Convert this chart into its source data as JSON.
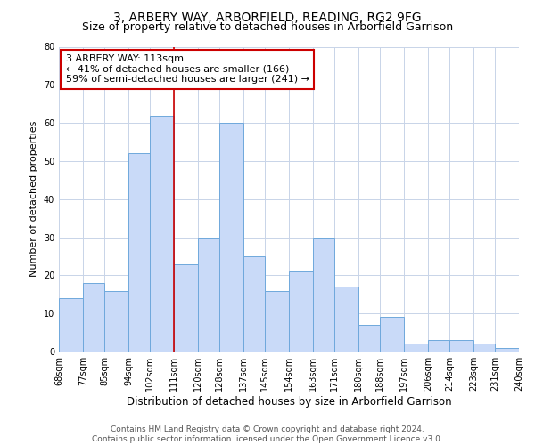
{
  "title": "3, ARBERY WAY, ARBORFIELD, READING, RG2 9FG",
  "subtitle": "Size of property relative to detached houses in Arborfield Garrison",
  "xlabel": "Distribution of detached houses by size in Arborfield Garrison",
  "ylabel": "Number of detached properties",
  "footer_line1": "Contains HM Land Registry data © Crown copyright and database right 2024.",
  "footer_line2": "Contains public sector information licensed under the Open Government Licence v3.0.",
  "annotation_line1": "3 ARBERY WAY: 113sqm",
  "annotation_line2": "← 41% of detached houses are smaller (166)",
  "annotation_line3": "59% of semi-detached houses are larger (241) →",
  "bar_edges": [
    68,
    77,
    85,
    94,
    102,
    111,
    120,
    128,
    137,
    145,
    154,
    163,
    171,
    180,
    188,
    197,
    206,
    214,
    223,
    231,
    240
  ],
  "bar_heights": [
    14,
    18,
    16,
    52,
    62,
    23,
    30,
    60,
    25,
    16,
    21,
    30,
    17,
    7,
    9,
    2,
    3,
    3,
    2,
    1
  ],
  "tick_labels": [
    "68sqm",
    "77sqm",
    "85sqm",
    "94sqm",
    "102sqm",
    "111sqm",
    "120sqm",
    "128sqm",
    "137sqm",
    "145sqm",
    "154sqm",
    "163sqm",
    "171sqm",
    "180sqm",
    "188sqm",
    "197sqm",
    "206sqm",
    "214sqm",
    "223sqm",
    "231sqm",
    "240sqm"
  ],
  "bar_color": "#c9daf8",
  "bar_edge_color": "#6fa8dc",
  "vline_x": 111,
  "vline_color": "#cc0000",
  "annotation_box_edge_color": "#cc0000",
  "ylim": [
    0,
    80
  ],
  "yticks": [
    0,
    10,
    20,
    30,
    40,
    50,
    60,
    70,
    80
  ],
  "grid_color": "#c8d4e8",
  "background_color": "#ffffff",
  "title_fontsize": 10,
  "subtitle_fontsize": 9,
  "xlabel_fontsize": 8.5,
  "ylabel_fontsize": 8,
  "tick_fontsize": 7,
  "annotation_fontsize": 8,
  "footer_fontsize": 6.5
}
